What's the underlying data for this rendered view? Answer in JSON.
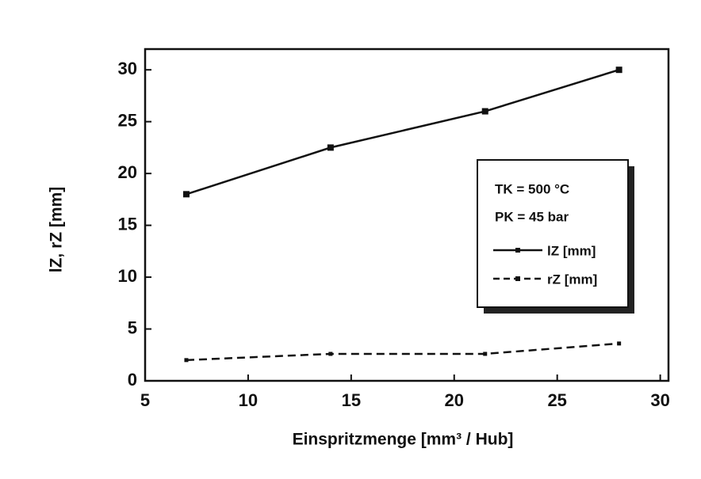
{
  "chart_data": {
    "type": "line",
    "xlabel": "Einspritzmenge [mm³ / Hub]",
    "ylabel": "lZ, rZ [mm]",
    "annotations": [
      "TK = 500 °C",
      "PK = 45 bar"
    ],
    "xlim": [
      5,
      30.4
    ],
    "xticks": [
      5,
      10,
      15,
      20,
      25,
      30
    ],
    "ylim": [
      0,
      32
    ],
    "yticks": [
      0,
      5,
      10,
      15,
      20,
      25,
      30
    ],
    "series": [
      {
        "name": "lZ [mm]",
        "color": "#111111",
        "dashed": false,
        "x": [
          7,
          14,
          21.5,
          28
        ],
        "values": [
          18,
          22.5,
          26,
          30
        ]
      },
      {
        "name": "rZ [mm]",
        "color": "#111111",
        "dashed": true,
        "x": [
          7,
          14,
          21.5,
          28
        ],
        "values": [
          2,
          2.6,
          2.6,
          3.6
        ]
      }
    ]
  }
}
